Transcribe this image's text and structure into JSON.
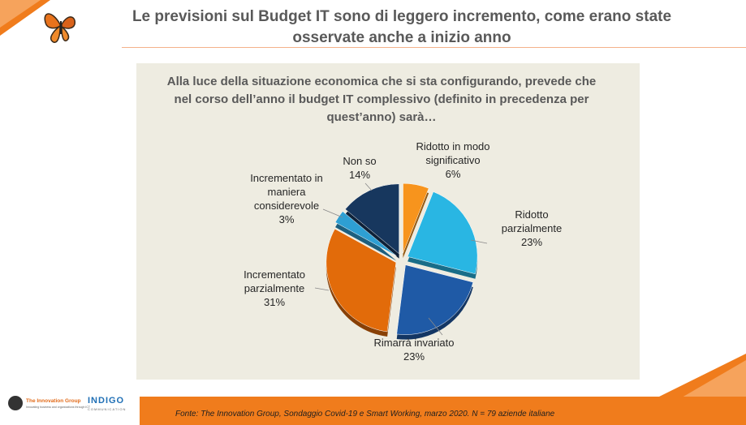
{
  "slide": {
    "title": "Le previsioni sul Budget IT sono di leggero incremento, come erano state osservate anche a inizio anno",
    "question": "Alla luce della situazione economica che si sta configurando, prevede che nel corso dell’anno il budget IT complessivo (definito in precedenza per quest’anno) sarà…",
    "source": "Fonte: The Innovation Group, Sondaggio Covid-19 e Smart Working, marzo 2020. N = 79  aziende italiane"
  },
  "logos": {
    "innovation_group": {
      "name": "The Innovation Group",
      "tagline": "Innovating business and organizations through ICT"
    },
    "indigo": {
      "name": "INDIGO",
      "tagline": "COMMUNICATION"
    }
  },
  "colors": {
    "accent_orange": "#f07c1c",
    "panel_bg": "#eeece1",
    "title_text": "#595959"
  },
  "chart_data": {
    "type": "pie",
    "title": "",
    "slices": [
      {
        "label": "Ridotto in modo significativo",
        "value": 6,
        "pct_label": "6%",
        "color": "#f7941d",
        "exploded": true
      },
      {
        "label": "Ridotto parzialmente",
        "value": 23,
        "pct_label": "23%",
        "color": "#29b6e3",
        "exploded": true
      },
      {
        "label": "Rimarrà invariato",
        "value": 23,
        "pct_label": "23%",
        "color": "#1f5aa6",
        "exploded": true
      },
      {
        "label": "Incrementato parzialmente",
        "value": 31,
        "pct_label": "31%",
        "color": "#e26b0a",
        "exploded": true
      },
      {
        "label": "Incrementato in maniera considerevole",
        "value": 3,
        "pct_label": "3%",
        "color": "#2e9fd3",
        "exploded": true
      },
      {
        "label": "Non so",
        "value": 14,
        "pct_label": "14%",
        "color": "#17375e",
        "exploded": true
      }
    ],
    "start_angle": "12 o'clock",
    "direction": "clockwise",
    "legend": "none",
    "labels": {
      "ridotto_significativo": {
        "line1": "Ridotto in modo",
        "line2": "significativo",
        "pct": "6%"
      },
      "ridotto_parzialmente": {
        "line1": "Ridotto",
        "line2": "parzialmente",
        "pct": "23%"
      },
      "rimarra_invariato": {
        "line1": "Rimarrà invariato",
        "pct": "23%"
      },
      "incrementato_parzialmente": {
        "line1": "Incrementato",
        "line2": "parzialmente",
        "pct": "31%"
      },
      "incrementato_considerevole": {
        "line1": "Incrementato in",
        "line2": "maniera",
        "line3": "considerevole",
        "pct": "3%"
      },
      "non_so": {
        "line1": "Non so",
        "pct": "14%"
      }
    }
  }
}
